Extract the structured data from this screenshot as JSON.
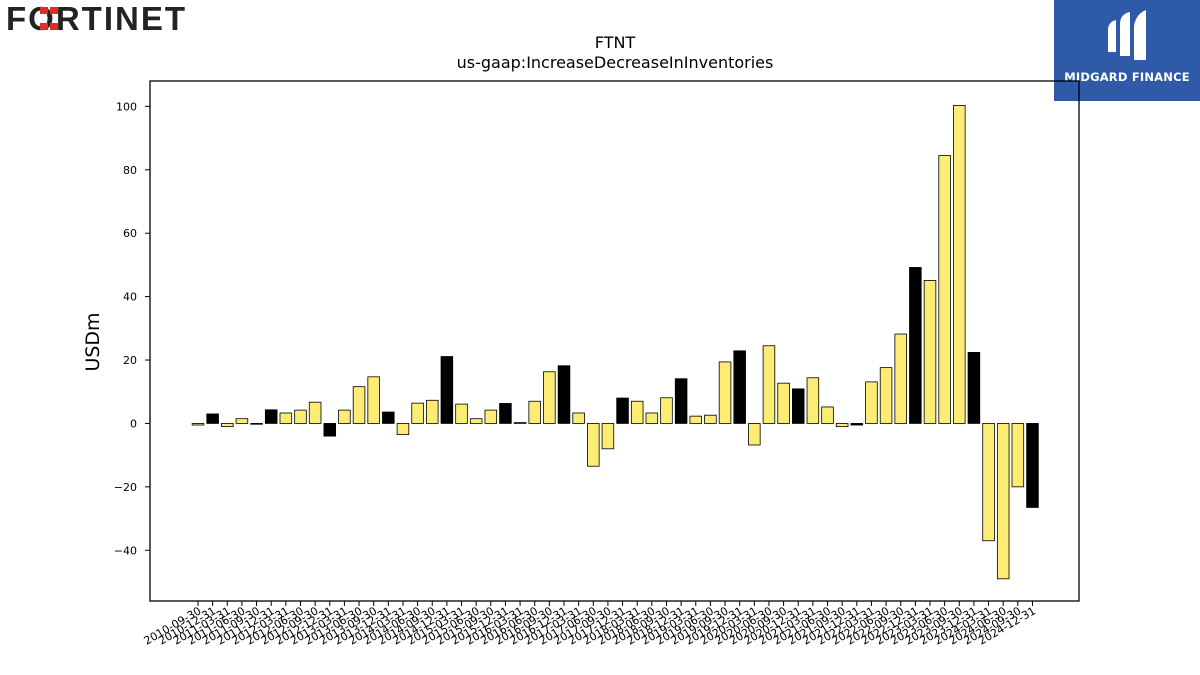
{
  "brand_left": {
    "name": "FORTINET"
  },
  "brand_right": {
    "name": "MIDGARD FINANCE"
  },
  "chart_data": {
    "type": "bar",
    "title": "FTNT",
    "subtitle": "us-gaap:IncreaseDecreaseInInventories",
    "ylabel": "USDm",
    "ylim": [
      -56,
      108
    ],
    "yticks": [
      -40,
      -20,
      0,
      20,
      40,
      60,
      80,
      100
    ],
    "grid": false,
    "colors": {
      "default": "#fcec74",
      "highlight": "#000000",
      "edge": "#000000"
    },
    "categories": [
      "2010-09-30",
      "2010-12-31",
      "2011-03-31",
      "2011-06-30",
      "2011-09-30",
      "2011-12-31",
      "2012-03-31",
      "2012-06-30",
      "2012-09-30",
      "2012-12-31",
      "2013-03-31",
      "2013-06-30",
      "2013-09-30",
      "2013-12-31",
      "2014-03-31",
      "2014-06-30",
      "2014-09-30",
      "2014-12-31",
      "2015-03-31",
      "2015-06-30",
      "2015-09-30",
      "2015-12-31",
      "2016-03-31",
      "2016-06-30",
      "2016-09-30",
      "2016-12-31",
      "2017-03-31",
      "2017-06-30",
      "2017-09-30",
      "2017-12-31",
      "2018-03-31",
      "2018-06-30",
      "2018-09-30",
      "2018-12-31",
      "2019-03-31",
      "2019-06-30",
      "2019-09-30",
      "2019-12-31",
      "2020-03-31",
      "2020-06-30",
      "2020-09-30",
      "2020-12-31",
      "2021-03-31",
      "2021-06-30",
      "2021-09-30",
      "2021-12-31",
      "2022-03-31",
      "2022-06-30",
      "2022-09-30",
      "2022-12-31",
      "2023-03-31",
      "2023-06-30",
      "2023-09-30",
      "2023-12-31",
      "2024-03-31",
      "2024-06-30",
      "2024-09-30",
      "2024-12-31"
    ],
    "values": [
      -0.5,
      3.0,
      -1.0,
      1.5,
      0.0,
      4.3,
      3.3,
      4.2,
      6.7,
      -4.0,
      4.2,
      11.6,
      14.7,
      3.6,
      -3.5,
      6.4,
      7.3,
      21.1,
      6.1,
      1.5,
      4.2,
      6.3,
      0.3,
      7.0,
      16.3,
      18.2,
      3.3,
      -13.5,
      -8.0,
      8.0,
      7.0,
      3.3,
      8.1,
      14.1,
      2.3,
      2.6,
      19.4,
      22.9,
      -6.8,
      24.5,
      12.7,
      10.9,
      14.4,
      5.2,
      -1.0,
      -0.5,
      13.1,
      17.6,
      28.2,
      49.2,
      45.1,
      84.5,
      100.3,
      22.4,
      -37.0,
      -49.0,
      -20.0,
      -26.5
    ],
    "highlight": [
      false,
      true,
      false,
      false,
      false,
      true,
      false,
      false,
      false,
      true,
      false,
      false,
      false,
      true,
      false,
      false,
      false,
      true,
      false,
      false,
      false,
      true,
      false,
      false,
      false,
      true,
      false,
      false,
      false,
      true,
      false,
      false,
      false,
      true,
      false,
      false,
      false,
      true,
      false,
      false,
      false,
      true,
      false,
      false,
      false,
      true,
      false,
      false,
      false,
      true,
      false,
      false,
      false,
      true,
      false,
      false,
      false,
      true
    ]
  }
}
